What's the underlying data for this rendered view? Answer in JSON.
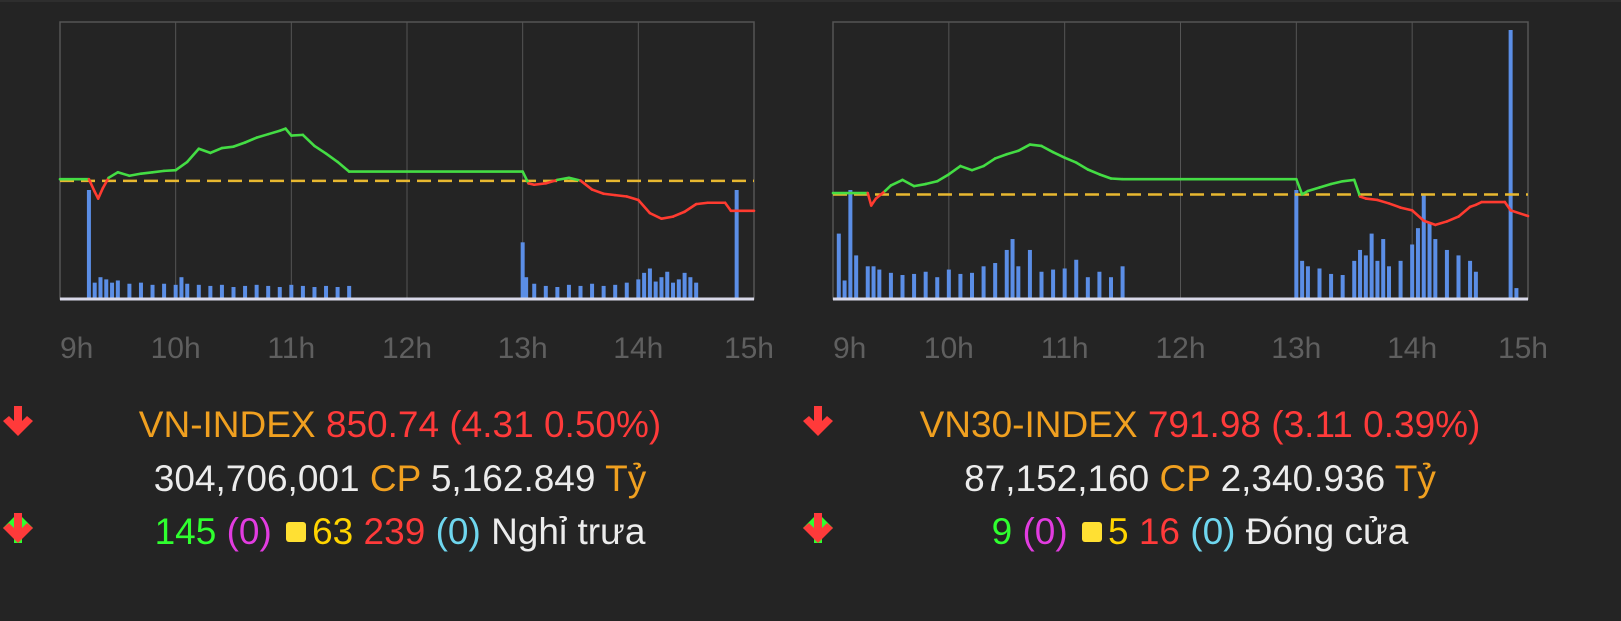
{
  "colors": {
    "background": "#242424",
    "grid": "#555555",
    "up": "#44dd44",
    "down": "#ff3b30",
    "reference": "#e8b830",
    "volume": "#5b8ee6",
    "label_orange": "#f0a020"
  },
  "charts": [
    {
      "index_name": "VN-INDEX",
      "value": "850.74",
      "change": "(4.31 0.50%)",
      "volume": "304,706,001",
      "volume_unit": "CP",
      "turnover": "5,162.849",
      "turnover_unit": "Tỷ",
      "advances": "145",
      "advances_ceiling": "(0)",
      "unchanged": "63",
      "declines": "239",
      "declines_floor": "(0)",
      "status": "Nghỉ trưa",
      "icons": [
        "arrow-down-icon",
        "arrow-up-icon",
        "square-icon",
        "arrow-down-icon"
      ]
    },
    {
      "index_name": "VN30-INDEX",
      "value": "791.98",
      "change": "(3.11 0.39%)",
      "volume": "87,152,160",
      "volume_unit": "CP",
      "turnover": "2,340.936",
      "turnover_unit": "Tỷ",
      "advances": "9",
      "advances_ceiling": "(0)",
      "unchanged": "5",
      "declines": "16",
      "declines_floor": "(0)",
      "status": "Đóng cửa",
      "icons": [
        "arrow-down-icon",
        "arrow-up-icon",
        "square-icon",
        "arrow-down-icon"
      ]
    }
  ],
  "chart_data": [
    {
      "type": "line",
      "x_ticks": [
        "9h",
        "10h",
        "11h",
        "12h",
        "13h",
        "14h",
        "15h"
      ],
      "reference": 855.05,
      "ylim": [
        838,
        878
      ],
      "x_unit": "hours",
      "price": {
        "x": [
          9.0,
          9.25,
          9.3,
          9.33,
          9.37,
          9.42,
          9.5,
          9.6,
          9.7,
          9.8,
          9.9,
          10.0,
          10.1,
          10.2,
          10.3,
          10.4,
          10.5,
          10.6,
          10.7,
          10.8,
          10.9,
          10.95,
          11.0,
          11.1,
          11.2,
          11.3,
          11.4,
          11.5,
          13.0,
          13.05,
          13.1,
          13.2,
          13.3,
          13.4,
          13.5,
          13.6,
          13.7,
          13.8,
          13.9,
          14.0,
          14.1,
          14.2,
          14.3,
          14.4,
          14.5,
          14.6,
          14.75,
          14.8,
          14.85,
          15.0
        ],
        "y": [
          855.3,
          855.3,
          853.5,
          852.5,
          854.0,
          855.5,
          856.3,
          855.8,
          856.1,
          856.3,
          856.5,
          856.6,
          857.8,
          859.7,
          859.1,
          859.8,
          860.0,
          860.6,
          861.3,
          861.8,
          862.3,
          862.6,
          861.6,
          861.7,
          860.1,
          859.0,
          857.8,
          856.4,
          856.4,
          854.7,
          854.5,
          854.7,
          855.2,
          855.5,
          855.1,
          853.8,
          853.2,
          853.0,
          852.8,
          852.3,
          850.4,
          849.6,
          849.9,
          850.6,
          851.7,
          851.9,
          851.9,
          850.74,
          850.74,
          850.74
        ]
      },
      "volume_bars": {
        "x": [
          9.25,
          9.3,
          9.35,
          9.4,
          9.45,
          9.5,
          9.6,
          9.7,
          9.8,
          9.9,
          10.0,
          10.05,
          10.1,
          10.2,
          10.3,
          10.4,
          10.5,
          10.6,
          10.7,
          10.8,
          10.9,
          11.0,
          11.1,
          11.2,
          11.3,
          11.4,
          11.5,
          13.0,
          13.03,
          13.1,
          13.2,
          13.3,
          13.4,
          13.5,
          13.6,
          13.7,
          13.8,
          13.9,
          14.0,
          14.05,
          14.1,
          14.15,
          14.2,
          14.25,
          14.3,
          14.35,
          14.4,
          14.45,
          14.5,
          14.85,
          14.9
        ],
        "y": [
          1.0,
          0.15,
          0.2,
          0.18,
          0.15,
          0.17,
          0.14,
          0.15,
          0.13,
          0.14,
          0.13,
          0.2,
          0.14,
          0.13,
          0.12,
          0.13,
          0.11,
          0.12,
          0.13,
          0.12,
          0.11,
          0.13,
          0.12,
          0.11,
          0.12,
          0.11,
          0.12,
          0.52,
          0.2,
          0.14,
          0.12,
          0.11,
          0.13,
          0.12,
          0.14,
          0.12,
          0.13,
          0.15,
          0.18,
          0.24,
          0.28,
          0.16,
          0.2,
          0.25,
          0.15,
          0.18,
          0.24,
          0.2,
          0.15,
          1.0,
          0.0
        ]
      }
    },
    {
      "type": "line",
      "x_ticks": [
        "9h",
        "10h",
        "11h",
        "12h",
        "13h",
        "14h",
        "15h"
      ],
      "reference": 795.09,
      "ylim": [
        780,
        820
      ],
      "x_unit": "hours",
      "price": {
        "x": [
          9.0,
          9.3,
          9.33,
          9.37,
          9.45,
          9.5,
          9.6,
          9.7,
          9.8,
          9.9,
          10.0,
          10.1,
          10.2,
          10.3,
          10.4,
          10.5,
          10.6,
          10.7,
          10.8,
          10.9,
          11.0,
          11.1,
          11.2,
          11.3,
          11.4,
          11.5,
          13.0,
          13.05,
          13.1,
          13.2,
          13.3,
          13.4,
          13.5,
          13.55,
          13.6,
          13.7,
          13.8,
          13.9,
          14.0,
          14.1,
          14.2,
          14.3,
          14.4,
          14.5,
          14.55,
          14.6,
          14.8,
          14.85,
          15.0
        ],
        "y": [
          795.3,
          795.3,
          793.5,
          794.5,
          795.6,
          796.4,
          797.2,
          796.3,
          796.6,
          797.0,
          798.0,
          799.2,
          798.6,
          799.2,
          800.3,
          800.9,
          801.4,
          802.3,
          802.1,
          801.2,
          800.4,
          799.7,
          798.7,
          798.0,
          797.4,
          797.3,
          797.3,
          795.1,
          795.6,
          796.1,
          796.6,
          797.0,
          797.2,
          794.8,
          794.5,
          794.3,
          793.8,
          793.2,
          792.8,
          791.3,
          790.7,
          791.2,
          791.9,
          793.3,
          793.6,
          794.0,
          794.0,
          792.8,
          791.98
        ]
      },
      "volume_bars": {
        "x": [
          9.05,
          9.1,
          9.15,
          9.2,
          9.3,
          9.35,
          9.4,
          9.5,
          9.6,
          9.7,
          9.8,
          9.9,
          10.0,
          10.1,
          10.2,
          10.3,
          10.4,
          10.5,
          10.55,
          10.6,
          10.7,
          10.8,
          10.9,
          11.0,
          11.1,
          11.2,
          11.3,
          11.4,
          11.5,
          13.0,
          13.05,
          13.1,
          13.2,
          13.3,
          13.4,
          13.5,
          13.55,
          13.6,
          13.65,
          13.7,
          13.75,
          13.8,
          13.9,
          14.0,
          14.05,
          14.1,
          14.15,
          14.2,
          14.3,
          14.4,
          14.5,
          14.55,
          14.85,
          14.9
        ],
        "y": [
          0.6,
          0.17,
          1.0,
          0.4,
          0.3,
          0.3,
          0.27,
          0.24,
          0.22,
          0.23,
          0.25,
          0.2,
          0.27,
          0.23,
          0.24,
          0.3,
          0.33,
          0.45,
          0.55,
          0.3,
          0.45,
          0.25,
          0.27,
          0.28,
          0.36,
          0.2,
          0.25,
          0.2,
          0.3,
          1.0,
          0.35,
          0.3,
          0.28,
          0.23,
          0.22,
          0.35,
          0.45,
          0.4,
          0.6,
          0.35,
          0.55,
          0.3,
          0.35,
          0.5,
          0.65,
          0.95,
          0.7,
          0.55,
          0.45,
          0.4,
          0.35,
          0.25,
          3.0,
          0.1
        ]
      }
    }
  ]
}
